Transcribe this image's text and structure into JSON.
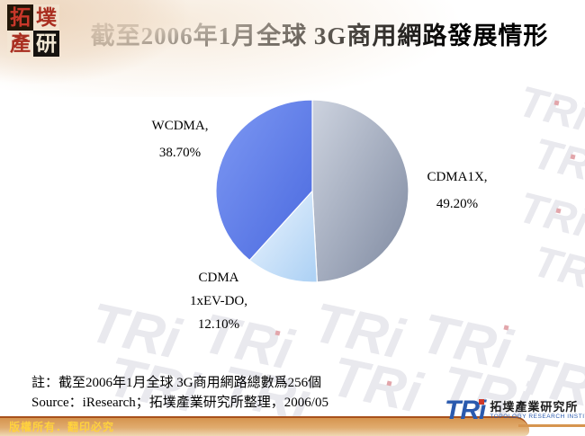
{
  "header": {
    "title": "截至2006年1月全球 3G商用網路發展情形",
    "logo_chars": [
      "拓",
      "墣",
      "產",
      "研"
    ]
  },
  "chart_data": {
    "type": "pie",
    "title": "截至2006年1月全球 3G商用網路發展情形",
    "value_unit": "percent",
    "start_angle_deg": 0,
    "direction": "clockwise",
    "slices": [
      {
        "label": "CDMA1X",
        "value": 49.2,
        "gradient": [
          "#CDD3DF",
          "#7E89A0"
        ]
      },
      {
        "label": "CDMA 1xEV-DO",
        "value": 12.1,
        "gradient": [
          "#EDF5FE",
          "#ABD0F4"
        ]
      },
      {
        "label": "WCDMA",
        "value": 38.7,
        "gradient": [
          "#7E99F3",
          "#4A69DF"
        ]
      }
    ],
    "labels": {
      "wcdma": [
        "WCDMA,",
        "38.70%"
      ],
      "cdma1x": [
        "CDMA1X,",
        "49.20%"
      ],
      "evdo": [
        "CDMA",
        "1xEV-DO,",
        "12.10%"
      ]
    }
  },
  "notes": {
    "note": "註：截至2006年1月全球 3G商用網路總數爲256個",
    "source": "Source：iResearch；拓墣產業研究所整理，2006/05"
  },
  "footer": {
    "copyright": "版權所有．翻印必究",
    "brand": {
      "word": "TRi",
      "cjk": "拓墣產業研究所",
      "en": "TOPOLOGY RESEARCH INSTITUTE"
    }
  },
  "watermark": {
    "text": "TRi"
  },
  "colors": {
    "banner_map": "#EDD6BE",
    "bar_line": "#A8511C",
    "bar_fill": "#D6954F",
    "copyright_text": "#FFD23E",
    "brand_blue": "#2A5AAE",
    "brand_red": "#D03A2A"
  }
}
